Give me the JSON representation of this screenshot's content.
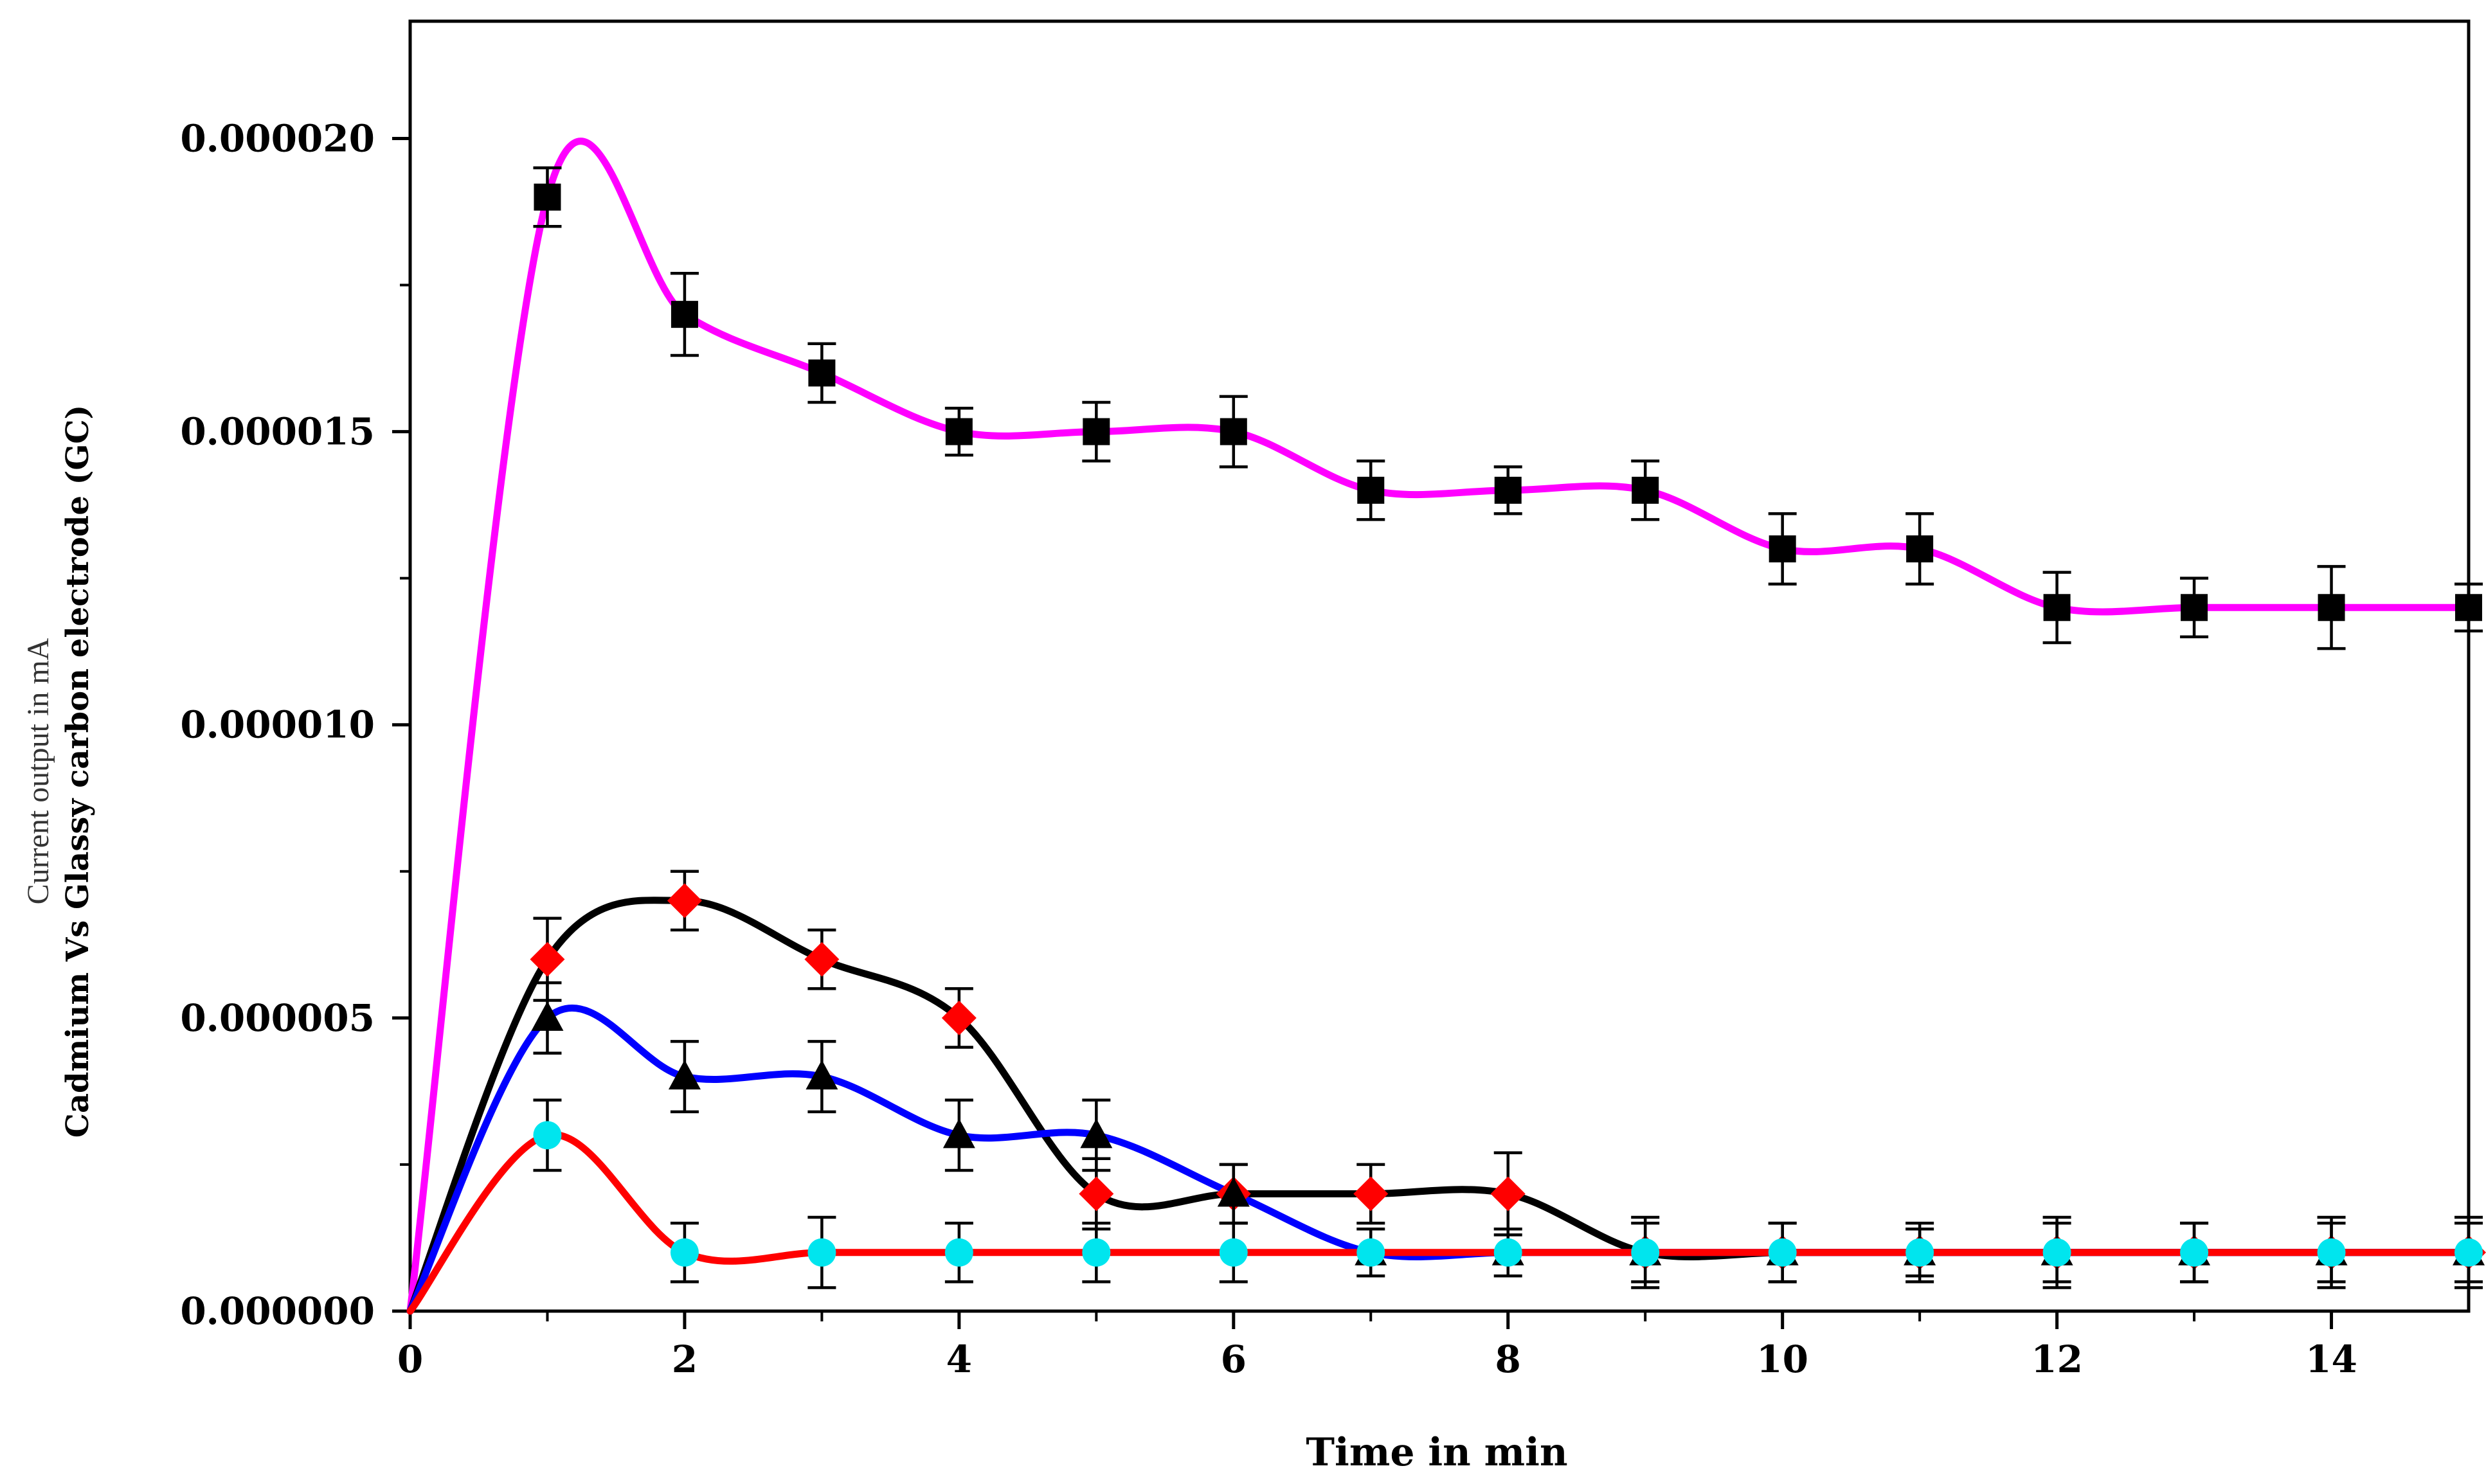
{
  "chart_data": {
    "type": "line",
    "title": "",
    "xlabel": "Time in min",
    "ylabel_lines": [
      "Current output in mA",
      "Cadmium Vs Glassy carbon electrode (GC)"
    ],
    "xlim": [
      0,
      15
    ],
    "ylim": [
      0,
      2.2e-05
    ],
    "xticks": [
      0,
      2,
      4,
      6,
      8,
      10,
      12,
      14
    ],
    "xtick_labels": [
      "0",
      "2",
      "4",
      "6",
      "8",
      "10",
      "12",
      "14"
    ],
    "yticks": [
      0,
      5e-06,
      1e-05,
      1.5e-05,
      2e-05
    ],
    "ytick_labels": [
      "0.000000",
      "0.000005",
      "0.000010",
      "0.000015",
      "0.000020"
    ],
    "grid": false,
    "series": [
      {
        "name": "magenta",
        "line_color": "#ff00ff",
        "marker": "square",
        "marker_color": "#000000",
        "x": [
          0,
          1,
          2,
          3,
          4,
          5,
          6,
          7,
          8,
          9,
          10,
          11,
          12,
          13,
          14,
          15
        ],
        "y": [
          0,
          1.9e-05,
          1.7e-05,
          1.6e-05,
          1.5e-05,
          1.5e-05,
          1.5e-05,
          1.4e-05,
          1.4e-05,
          1.4e-05,
          1.3e-05,
          1.3e-05,
          1.2e-05,
          1.2e-05,
          1.2e-05,
          1.2e-05
        ],
        "err": [
          0,
          5e-07,
          7e-07,
          5e-07,
          4e-07,
          5e-07,
          6e-07,
          5e-07,
          4e-07,
          5e-07,
          6e-07,
          6e-07,
          6e-07,
          5e-07,
          7e-07,
          4e-07
        ]
      },
      {
        "name": "black",
        "line_color": "#000000",
        "marker": "diamond",
        "marker_color": "#ff0000",
        "x": [
          0,
          1,
          2,
          3,
          4,
          5,
          6,
          7,
          8,
          9,
          10,
          11,
          12,
          13,
          14,
          15
        ],
        "y": [
          0,
          6e-06,
          7e-06,
          6e-06,
          5e-06,
          2e-06,
          2e-06,
          2e-06,
          2e-06,
          1e-06,
          1e-06,
          1e-06,
          1e-06,
          1e-06,
          1e-06,
          1e-06
        ],
        "err": [
          0,
          7e-07,
          5e-07,
          5e-07,
          5e-07,
          6e-07,
          5e-07,
          5e-07,
          7e-07,
          6e-07,
          5e-07,
          4e-07,
          6e-07,
          5e-07,
          6e-07,
          6e-07
        ]
      },
      {
        "name": "blue",
        "line_color": "#0000ff",
        "marker": "triangle",
        "marker_color": "#000000",
        "x": [
          0,
          1,
          2,
          3,
          4,
          5,
          6,
          7,
          8,
          9,
          10,
          11,
          12,
          13,
          14,
          15
        ],
        "y": [
          0,
          5e-06,
          4e-06,
          4e-06,
          3e-06,
          3e-06,
          2e-06,
          1e-06,
          1e-06,
          1e-06,
          1e-06,
          1e-06,
          1e-06,
          1e-06,
          1e-06,
          1e-06
        ],
        "err": [
          0,
          6e-07,
          6e-07,
          6e-07,
          6e-07,
          6e-07,
          5e-07,
          4e-07,
          4e-07,
          5e-07,
          5e-07,
          5e-07,
          5e-07,
          5e-07,
          5e-07,
          5e-07
        ]
      },
      {
        "name": "red",
        "line_color": "#ff0000",
        "marker": "circle",
        "marker_color": "#00e5ee",
        "x": [
          0,
          1,
          2,
          3,
          4,
          5,
          6,
          7,
          8,
          9,
          10,
          11,
          12,
          13,
          14,
          15
        ],
        "y": [
          0,
          3e-06,
          1e-06,
          1e-06,
          1e-06,
          1e-06,
          1e-06,
          1e-06,
          1e-06,
          1e-06,
          1e-06,
          1e-06,
          1e-06,
          1e-06,
          1e-06,
          1e-06
        ],
        "err": [
          0,
          6e-07,
          5e-07,
          6e-07,
          5e-07,
          5e-07,
          5e-07,
          0,
          0,
          0,
          0,
          0,
          0,
          0,
          0,
          0
        ]
      }
    ]
  }
}
